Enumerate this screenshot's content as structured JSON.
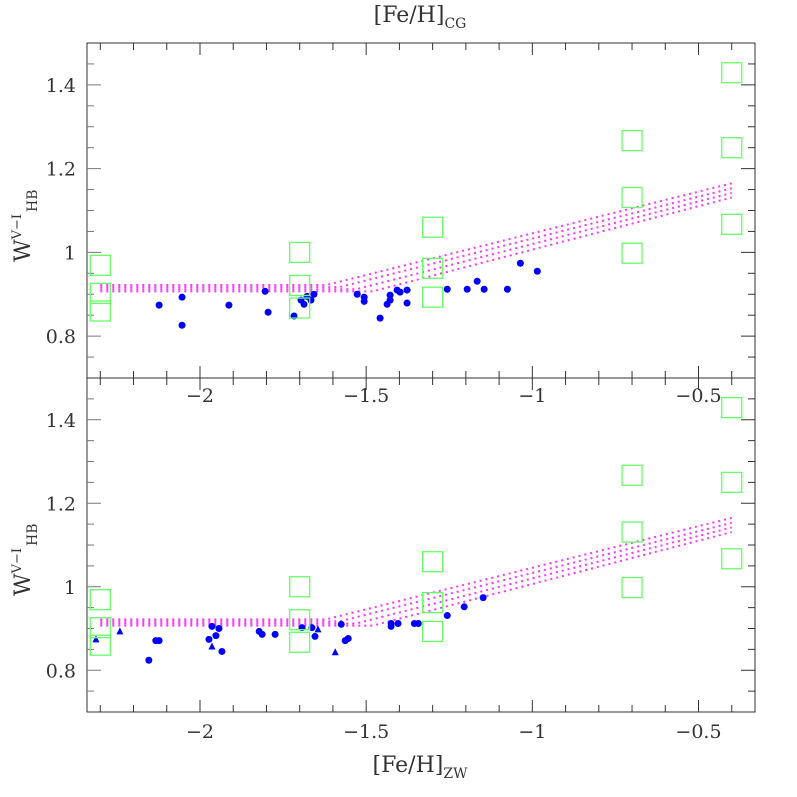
{
  "chart_data": [
    {
      "type": "scatter",
      "panel": "top",
      "xlabel_top": {
        "main": "[Fe/H]",
        "sub": "CG"
      },
      "ylabel": {
        "main": "W",
        "sup": "V−I",
        "sub": "HB"
      },
      "xlim": [
        -2.34,
        -0.33
      ],
      "ylim": [
        0.7,
        1.5
      ],
      "x_ticks": [
        "-2",
        "-1.5",
        "-1",
        "-0.5"
      ],
      "x_tick_values": [
        -2,
        -1.5,
        -1,
        -0.5
      ],
      "y_ticks": [
        "0.8",
        "1",
        "1.2",
        "1.4"
      ],
      "y_tick_values": [
        0.8,
        1.0,
        1.2,
        1.4
      ],
      "grid": false,
      "series": [
        {
          "marker": "circle",
          "color": "#0000ff",
          "points": [
            [
              -2.123,
              0.874
            ],
            [
              -2.054,
              0.893
            ],
            [
              -2.054,
              0.826
            ],
            [
              -1.913,
              0.874
            ],
            [
              -1.804,
              0.907
            ],
            [
              -1.795,
              0.857
            ],
            [
              -1.717,
              0.848
            ],
            [
              -1.696,
              0.886
            ],
            [
              -1.687,
              0.876
            ],
            [
              -1.678,
              0.895
            ],
            [
              -1.666,
              0.886
            ],
            [
              -1.657,
              0.9
            ],
            [
              -1.527,
              0.9
            ],
            [
              -1.506,
              0.893
            ],
            [
              -1.506,
              0.883
            ],
            [
              -1.458,
              0.843
            ],
            [
              -1.437,
              0.876
            ],
            [
              -1.428,
              0.886
            ],
            [
              -1.428,
              0.898
            ],
            [
              -1.407,
              0.91
            ],
            [
              -1.398,
              0.905
            ],
            [
              -1.377,
              0.91
            ],
            [
              -1.377,
              0.879
            ],
            [
              -1.256,
              0.912
            ],
            [
              -1.196,
              0.912
            ],
            [
              -1.166,
              0.931
            ],
            [
              -1.145,
              0.912
            ],
            [
              -1.075,
              0.912
            ],
            [
              -1.036,
              0.974
            ],
            [
              -0.985,
              0.955
            ]
          ]
        },
        {
          "marker": "open-square",
          "color": "#66ff66",
          "points": [
            [
              -2.3,
              0.969
            ],
            [
              -2.3,
              0.902
            ],
            [
              -2.3,
              0.86
            ],
            [
              -1.7,
              1.0
            ],
            [
              -1.7,
              0.921
            ],
            [
              -1.7,
              0.867
            ],
            [
              -1.3,
              1.06
            ],
            [
              -1.3,
              0.962
            ],
            [
              -1.3,
              0.893
            ],
            [
              -0.7,
              1.267
            ],
            [
              -0.7,
              1.131
            ],
            [
              -0.7,
              0.998
            ],
            [
              -0.4,
              1.429
            ],
            [
              -0.4,
              1.25
            ],
            [
              -0.4,
              1.067
            ]
          ]
        },
        {
          "marker": "dotted-line",
          "color": "#ff33ff",
          "lines": [
            [
              [
                -2.3,
                0.922
              ],
              [
                -1.62,
                0.922
              ],
              [
                -0.4,
                1.165
              ]
            ],
            [
              [
                -2.3,
                0.917
              ],
              [
                -1.58,
                0.917
              ],
              [
                -0.4,
                1.153
              ]
            ],
            [
              [
                -2.3,
                0.912
              ],
              [
                -1.53,
                0.912
              ],
              [
                -0.4,
                1.142
              ]
            ],
            [
              [
                -2.3,
                0.907
              ],
              [
                -1.48,
                0.907
              ],
              [
                -0.4,
                1.131
              ]
            ]
          ]
        }
      ]
    },
    {
      "type": "scatter",
      "panel": "bottom",
      "xlabel": {
        "main": "[Fe/H]",
        "sub": "ZW"
      },
      "ylabel": {
        "main": "W",
        "sup": "V−I",
        "sub": "HB"
      },
      "xlim": [
        -2.34,
        -0.33
      ],
      "ylim": [
        0.7,
        1.5
      ],
      "x_ticks": [
        "-2",
        "-1.5",
        "-1",
        "-0.5"
      ],
      "x_tick_values": [
        -2,
        -1.5,
        -1,
        -0.5
      ],
      "y_ticks": [
        "0.8",
        "1",
        "1.2",
        "1.4"
      ],
      "y_tick_values": [
        0.8,
        1.0,
        1.2,
        1.4
      ],
      "grid": false,
      "series": [
        {
          "marker": "circle",
          "color": "#0000ff",
          "points": [
            [
              -2.154,
              0.824
            ],
            [
              -2.133,
              0.871
            ],
            [
              -2.123,
              0.871
            ],
            [
              -1.973,
              0.874
            ],
            [
              -1.964,
              0.905
            ],
            [
              -1.952,
              0.883
            ],
            [
              -1.943,
              0.9
            ],
            [
              -1.934,
              0.845
            ],
            [
              -1.822,
              0.893
            ],
            [
              -1.813,
              0.886
            ],
            [
              -1.774,
              0.886
            ],
            [
              -1.693,
              0.902
            ],
            [
              -1.663,
              0.902
            ],
            [
              -1.654,
              0.881
            ],
            [
              -1.575,
              0.91
            ],
            [
              -1.563,
              0.871
            ],
            [
              -1.554,
              0.876
            ],
            [
              -1.425,
              0.912
            ],
            [
              -1.425,
              0.905
            ],
            [
              -1.404,
              0.912
            ],
            [
              -1.355,
              0.912
            ],
            [
              -1.343,
              0.912
            ],
            [
              -1.256,
              0.931
            ],
            [
              -1.205,
              0.952
            ],
            [
              -1.148,
              0.974
            ]
          ]
        },
        {
          "marker": "triangle",
          "color": "#0000ff",
          "points": [
            [
              -2.313,
              0.874
            ],
            [
              -2.241,
              0.893
            ],
            [
              -1.964,
              0.857
            ],
            [
              -1.645,
              0.898
            ],
            [
              -1.593,
              0.843
            ]
          ]
        },
        {
          "marker": "open-square",
          "color": "#66ff66",
          "points": [
            [
              -2.3,
              0.969
            ],
            [
              -2.3,
              0.902
            ],
            [
              -2.3,
              0.86
            ],
            [
              -1.7,
              1.0
            ],
            [
              -1.7,
              0.921
            ],
            [
              -1.7,
              0.867
            ],
            [
              -1.3,
              1.06
            ],
            [
              -1.3,
              0.962
            ],
            [
              -1.3,
              0.893
            ],
            [
              -0.7,
              1.267
            ],
            [
              -0.7,
              1.131
            ],
            [
              -0.7,
              0.998
            ],
            [
              -0.4,
              1.429
            ],
            [
              -0.4,
              1.25
            ],
            [
              -0.4,
              1.067
            ]
          ]
        },
        {
          "marker": "dotted-line",
          "color": "#ff33ff",
          "lines": [
            [
              [
                -2.3,
                0.922
              ],
              [
                -1.62,
                0.922
              ],
              [
                -0.4,
                1.165
              ]
            ],
            [
              [
                -2.3,
                0.917
              ],
              [
                -1.58,
                0.917
              ],
              [
                -0.4,
                1.153
              ]
            ],
            [
              [
                -2.3,
                0.912
              ],
              [
                -1.53,
                0.912
              ],
              [
                -0.4,
                1.142
              ]
            ],
            [
              [
                -2.3,
                0.907
              ],
              [
                -1.48,
                0.907
              ],
              [
                -0.4,
                1.131
              ]
            ]
          ]
        }
      ]
    }
  ]
}
